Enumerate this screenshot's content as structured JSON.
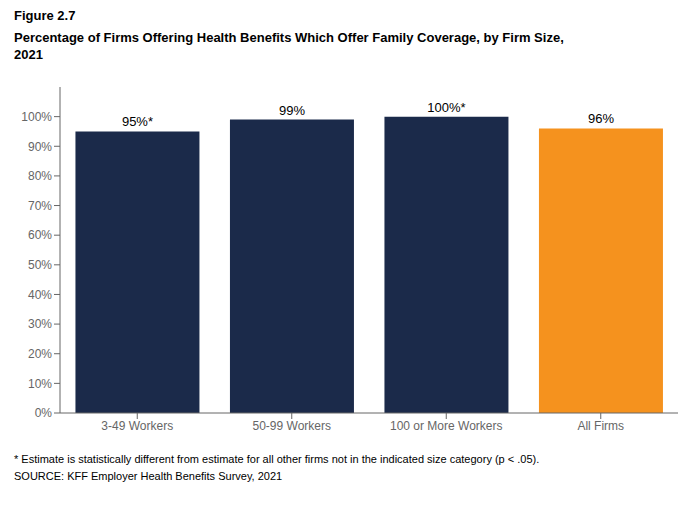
{
  "chart_data": {
    "type": "bar",
    "title": "Figure 2.7",
    "subtitle": [
      "Percentage of Firms Offering Health Benefits Which Offer Family Coverage, by Firm Size,",
      "2021"
    ],
    "annotations": [
      "* Estimate is statistically different from estimate for all other firms not in the indicated size category (p < .05).",
      "SOURCE: KFF Employer Health Benefits Survey, 2021"
    ],
    "categories": [
      "3-49 Workers",
      "50-99 Workers",
      "100 or More Workers",
      "All Firms"
    ],
    "values": [
      95,
      99,
      100,
      96
    ],
    "value_labels": [
      "95%*",
      "99%",
      "100%*",
      "96%"
    ],
    "data_labels": true,
    "colors": [
      "#1b2a4a",
      "#1b2a4a",
      "#1b2a4a",
      "#f5921e"
    ],
    "ylim": [
      0,
      110
    ],
    "yticks": [
      {
        "value": 0,
        "label": "0%"
      },
      {
        "value": 10,
        "label": "10%"
      },
      {
        "value": 20,
        "label": "20%"
      },
      {
        "value": 30,
        "label": "30%"
      },
      {
        "value": 40,
        "label": "40%"
      },
      {
        "value": 50,
        "label": "50%"
      },
      {
        "value": 60,
        "label": "60%"
      },
      {
        "value": 70,
        "label": "70%"
      },
      {
        "value": 80,
        "label": "80%"
      },
      {
        "value": 90,
        "label": "90%"
      },
      {
        "value": 100,
        "label": "100%"
      }
    ],
    "grid": false
  }
}
